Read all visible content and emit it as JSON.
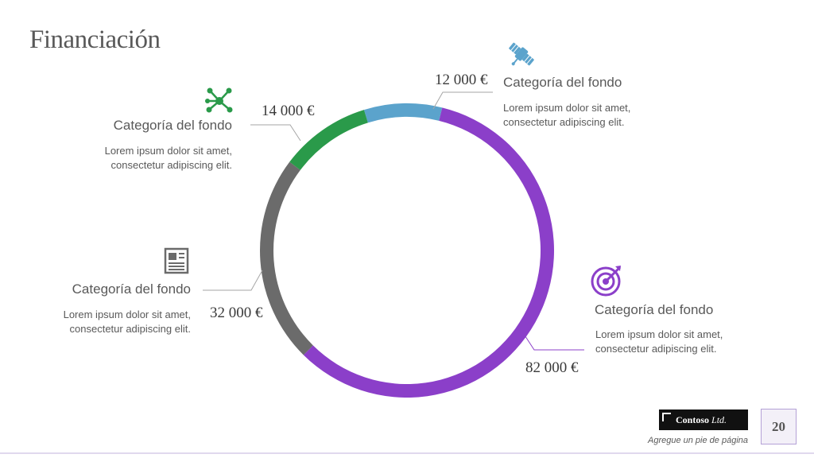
{
  "title": "Financiación",
  "chart_data": {
    "type": "pie",
    "variant": "donut",
    "slices": [
      {
        "label": "Categoría del fondo",
        "value": 12000,
        "display": "12 000 €",
        "color": "#5ba3cc"
      },
      {
        "label": "Categoría del fondo",
        "value": 82000,
        "display": "82 000 €",
        "color": "#8b3fc9"
      },
      {
        "label": "Categoría del fondo",
        "value": 32000,
        "display": "32 000 €",
        "color": "#6b6b6b"
      },
      {
        "label": "Categoría del fondo",
        "value": 14000,
        "display": "14 000 €",
        "color": "#2a9a4a"
      }
    ]
  },
  "callouts": [
    {
      "title": "Categoría del fondo",
      "desc": "Lorem ipsum dolor sit amet, consectetur adipiscing elit.",
      "icon": "satellite-icon"
    },
    {
      "title": "Categoría del fondo",
      "desc": "Lorem ipsum dolor sit amet, consectetur adipiscing elit.",
      "icon": "target-icon"
    },
    {
      "title": "Categoría del fondo",
      "desc": "Lorem ipsum dolor sit amet, consectetur adipiscing elit.",
      "icon": "newspaper-icon"
    },
    {
      "title": "Categoría del fondo",
      "desc": "Lorem ipsum dolor sit amet, consectetur adipiscing elit.",
      "icon": "network-icon"
    }
  ],
  "footer": {
    "brand": "Contoso",
    "brand_suffix": "Ltd.",
    "text": "Agregue un pie de página",
    "page_number": "20"
  },
  "colors": {
    "blue": "#5ba3cc",
    "purple": "#8b3fc9",
    "gray": "#6b6b6b",
    "green": "#2a9a4a",
    "text": "#595959"
  }
}
